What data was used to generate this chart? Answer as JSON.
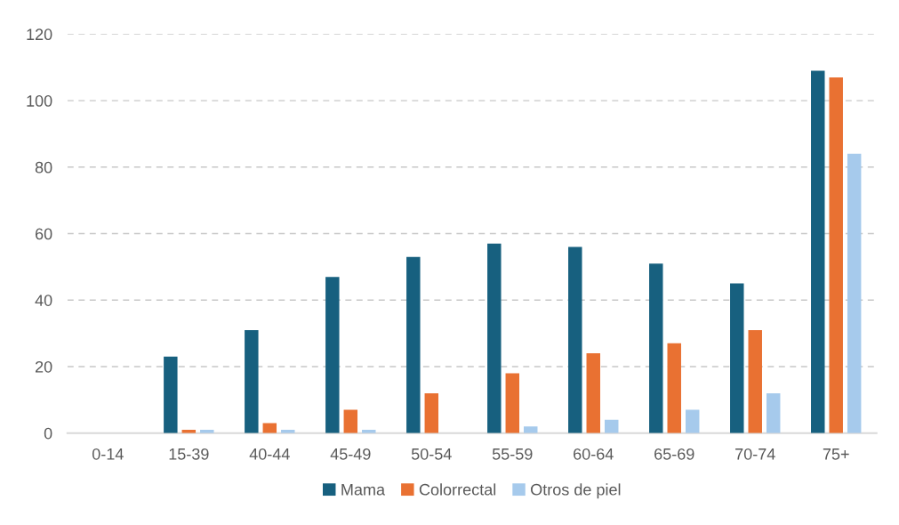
{
  "chart_data": {
    "type": "bar",
    "categories": [
      "0-14",
      "15-39",
      "40-44",
      "45-49",
      "50-54",
      "55-59",
      "60-64",
      "65-69",
      "70-74",
      "75+"
    ],
    "series": [
      {
        "name": "Mama",
        "color": "#17607f",
        "values": [
          0,
          23,
          31,
          47,
          53,
          57,
          56,
          51,
          45,
          109
        ]
      },
      {
        "name": "Colorrectal",
        "color": "#e97132",
        "values": [
          0,
          1,
          3,
          7,
          12,
          18,
          24,
          27,
          31,
          107
        ]
      },
      {
        "name": "Otros de piel",
        "color": "#a6caec",
        "values": [
          0,
          1,
          1,
          1,
          0,
          2,
          4,
          7,
          12,
          84
        ]
      }
    ],
    "ylim": [
      0,
      120
    ],
    "yticks": [
      0,
      20,
      40,
      60,
      80,
      100,
      120
    ],
    "grid": "y",
    "legend": "bottom"
  }
}
